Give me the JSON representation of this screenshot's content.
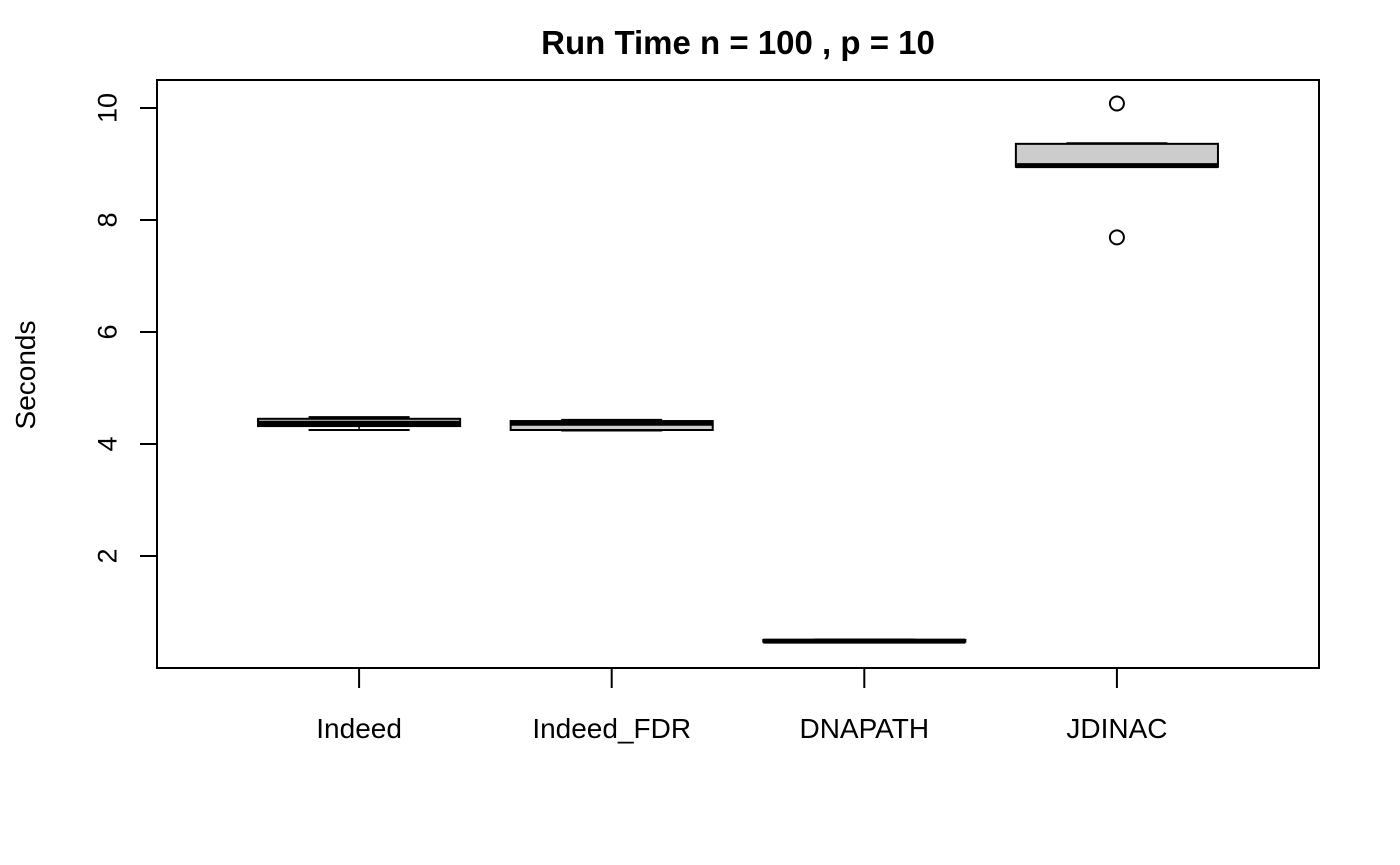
{
  "chart_data": {
    "type": "box",
    "title": "Run Time n = 100 , p = 10",
    "xlabel": "",
    "ylabel": "Seconds",
    "ylim": [
      0.0,
      10.5
    ],
    "yticks": [
      "2",
      "4",
      "6",
      "8",
      "10"
    ],
    "grid": false,
    "legend": "none",
    "box_fill": "#cccccc",
    "categories": [
      "Indeed",
      "Indeed_FDR",
      "DNAPATH",
      "JDINAC"
    ],
    "boxes": [
      {
        "category": "Indeed",
        "min": 4.25,
        "q1": 4.32,
        "median": 4.37,
        "q3": 4.45,
        "max": 4.48,
        "outliers": []
      },
      {
        "category": "Indeed_FDR",
        "min": 4.24,
        "q1": 4.25,
        "median": 4.37,
        "q3": 4.41,
        "max": 4.43,
        "outliers": []
      },
      {
        "category": "DNAPATH",
        "min": 0.46,
        "q1": 0.47,
        "median": 0.48,
        "q3": 0.5,
        "max": 0.51,
        "outliers": []
      },
      {
        "category": "JDINAC",
        "min": 8.95,
        "q1": 8.95,
        "median": 8.97,
        "q3": 9.36,
        "max": 9.37,
        "outliers": [
          10.08,
          7.69
        ]
      }
    ]
  }
}
